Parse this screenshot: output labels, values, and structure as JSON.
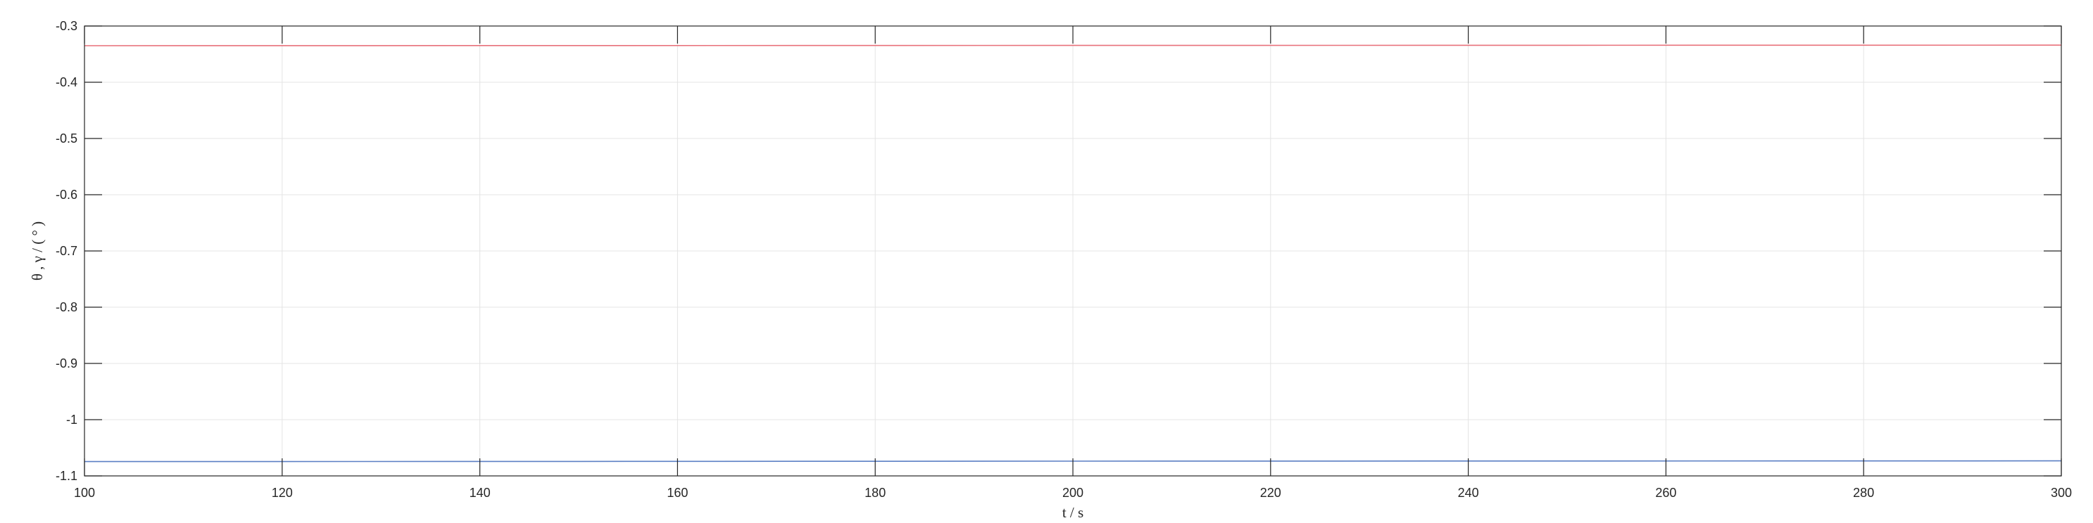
{
  "chart_data": {
    "type": "line",
    "title": "",
    "xlabel": "t  / s",
    "ylabel": "θ , γ / ( ° )",
    "xlim": [
      100,
      300
    ],
    "ylim": [
      -1.1,
      -0.3
    ],
    "xticks": [
      100,
      120,
      140,
      160,
      180,
      200,
      220,
      240,
      260,
      280,
      300
    ],
    "xtick_labels": [
      "100",
      "120",
      "140",
      "160",
      "180",
      "200",
      "220",
      "240",
      "260",
      "280",
      "300"
    ],
    "yticks": [
      -0.3,
      -0.4,
      -0.5,
      -0.6,
      -0.7,
      -0.8,
      -0.9,
      -1,
      -1.1
    ],
    "ytick_labels": [
      "-0.3",
      "-0.4",
      "-0.5",
      "-0.6",
      "-0.7",
      "-0.8",
      "-0.9",
      "-1",
      "-1.1"
    ],
    "grid": true,
    "legend": "none",
    "series": [
      {
        "color": "#e8707a",
        "x": [
          100,
          150,
          200,
          250,
          300
        ],
        "y": [
          -0.335,
          -0.3348,
          -0.3345,
          -0.3343,
          -0.334
        ]
      },
      {
        "color": "#5b7fc4",
        "x": [
          100,
          150,
          200,
          250,
          300
        ],
        "y": [
          -1.0745,
          -1.0742,
          -1.0738,
          -1.0735,
          -1.0732
        ]
      }
    ]
  }
}
